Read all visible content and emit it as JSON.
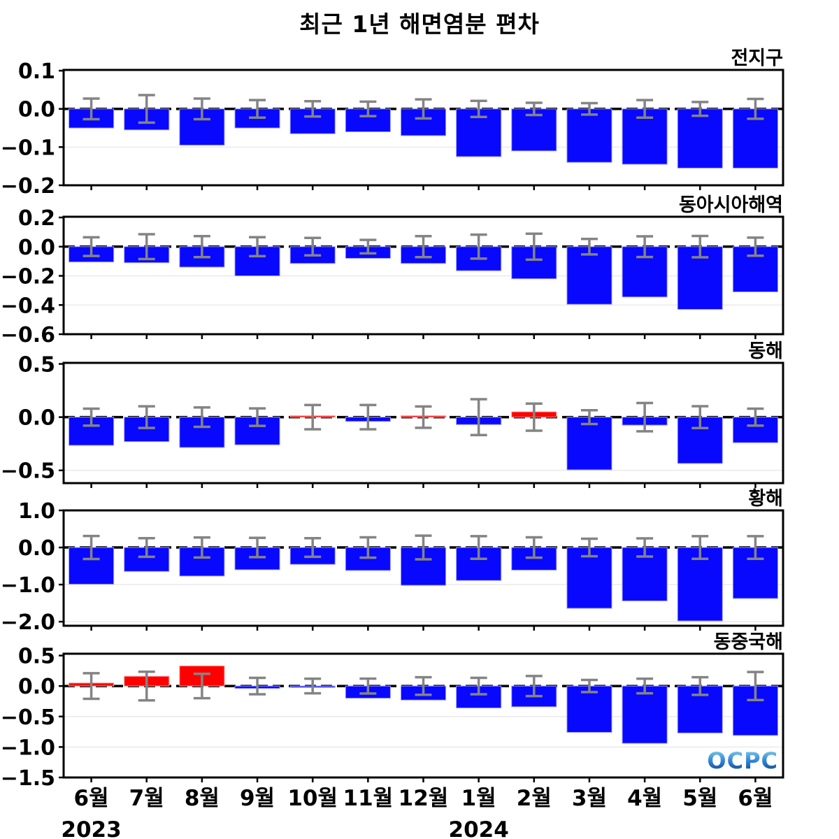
{
  "title": "최근 1년 해면염분 편차",
  "logo_text": "OCPC",
  "colors": {
    "positive_bar": "#ff0000",
    "negative_bar": "#0808ff",
    "negative_bar_edge": "#9f9fff",
    "positive_bar_edge": "#ff9f9f",
    "error_bar": "#848484",
    "gridline": "#ebebeb",
    "zero_line": "#000000",
    "axis": "#000000",
    "text": "#000000",
    "logo_gradient_top": "#8fd8ee",
    "logo_gradient_mid": "#2a7fd4",
    "logo_gradient_bottom": "#123a7a"
  },
  "x_axis": {
    "months": [
      "6월",
      "7월",
      "8월",
      "9월",
      "10월",
      "11월",
      "12월",
      "1월",
      "2월",
      "3월",
      "4월",
      "5월",
      "6월"
    ],
    "year_labels": [
      {
        "text": "2023",
        "month_index": 0
      },
      {
        "text": "2024",
        "month_index": 7
      }
    ]
  },
  "chart_data": [
    {
      "type": "bar",
      "label": "전지구",
      "ylim": [
        -0.2,
        0.102
      ],
      "yticks": [
        0.1,
        0.0,
        -0.1,
        -0.2
      ],
      "values": [
        -0.05,
        -0.055,
        -0.095,
        -0.05,
        -0.065,
        -0.06,
        -0.07,
        -0.125,
        -0.11,
        -0.14,
        -0.145,
        -0.155,
        -0.155
      ],
      "errors": [
        0.027,
        0.036,
        0.027,
        0.023,
        0.02,
        0.019,
        0.025,
        0.021,
        0.016,
        0.015,
        0.023,
        0.018,
        0.026
      ]
    },
    {
      "type": "bar",
      "label": "동아시아해역",
      "ylim": [
        -0.6,
        0.205
      ],
      "yticks": [
        0.2,
        0.0,
        -0.2,
        -0.4,
        -0.6
      ],
      "values": [
        -0.105,
        -0.11,
        -0.14,
        -0.2,
        -0.115,
        -0.08,
        -0.115,
        -0.165,
        -0.22,
        -0.395,
        -0.345,
        -0.43,
        -0.31
      ],
      "errors": [
        0.064,
        0.085,
        0.072,
        0.065,
        0.06,
        0.046,
        0.072,
        0.082,
        0.089,
        0.053,
        0.071,
        0.073,
        0.062
      ]
    },
    {
      "type": "bar",
      "label": "동해",
      "ylim": [
        -0.62,
        0.51
      ],
      "yticks": [
        0.5,
        0.0,
        -0.5
      ],
      "values": [
        -0.265,
        -0.23,
        -0.285,
        -0.26,
        0.005,
        -0.04,
        0.005,
        -0.07,
        0.05,
        -0.495,
        -0.075,
        -0.435,
        -0.24
      ],
      "errors": [
        0.08,
        0.102,
        0.091,
        0.082,
        0.114,
        0.114,
        0.1,
        0.168,
        0.127,
        0.065,
        0.133,
        0.103,
        0.08
      ]
    },
    {
      "type": "bar",
      "label": "황해",
      "ylim": [
        -2.11,
        1.0
      ],
      "yticks": [
        1.0,
        0.0,
        -1.0,
        -2.0
      ],
      "values": [
        -0.99,
        -0.645,
        -0.77,
        -0.6,
        -0.455,
        -0.62,
        -1.02,
        -0.89,
        -0.61,
        -1.64,
        -1.44,
        -1.98,
        -1.375
      ],
      "errors": [
        0.31,
        0.25,
        0.27,
        0.26,
        0.25,
        0.275,
        0.32,
        0.305,
        0.275,
        0.237,
        0.245,
        0.305,
        0.305
      ]
    },
    {
      "type": "bar",
      "label": "동중국해",
      "ylim": [
        -1.5,
        0.53
      ],
      "yticks": [
        0.5,
        0.0,
        -0.5,
        -1.0,
        -1.5
      ],
      "values": [
        0.05,
        0.16,
        0.33,
        -0.04,
        -0.01,
        -0.2,
        -0.23,
        -0.36,
        -0.34,
        -0.76,
        -0.94,
        -0.77,
        -0.81
      ],
      "errors": [
        0.21,
        0.235,
        0.2,
        0.135,
        0.12,
        0.122,
        0.144,
        0.135,
        0.165,
        0.1,
        0.12,
        0.145,
        0.23
      ]
    }
  ]
}
